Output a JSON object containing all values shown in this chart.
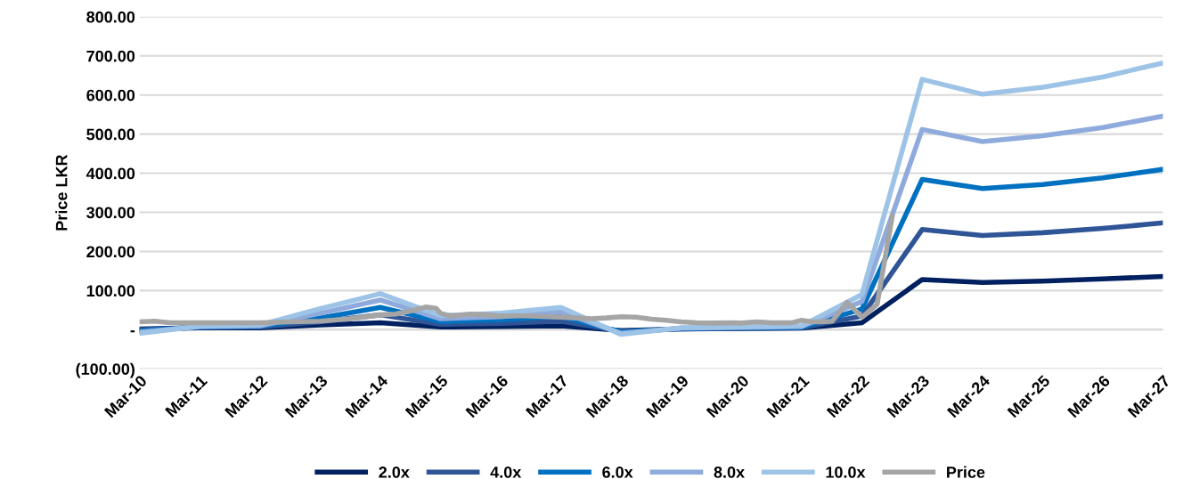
{
  "chart_data": {
    "type": "line",
    "ylabel": "Price LKR",
    "x": [
      "2010-03",
      "2011-03",
      "2012-03",
      "2013-03",
      "2014-03",
      "2015-03",
      "2016-03",
      "2017-03",
      "2018-03",
      "2019-03",
      "2020-03",
      "2021-03",
      "2022-03",
      "2023-03",
      "2024-03",
      "2025-03",
      "2026-03",
      "2027-03"
    ],
    "xlim": [
      "2010-03",
      "2027-03"
    ],
    "xticks": [
      {
        "value": "2010-03",
        "label": "Mar-10"
      },
      {
        "value": "2011-03",
        "label": "Mar-11"
      },
      {
        "value": "2012-03",
        "label": "Mar-12"
      },
      {
        "value": "2013-03",
        "label": "Mar-13"
      },
      {
        "value": "2014-03",
        "label": "Mar-14"
      },
      {
        "value": "2015-03",
        "label": "Mar-15"
      },
      {
        "value": "2016-03",
        "label": "Mar-16"
      },
      {
        "value": "2017-03",
        "label": "Mar-17"
      },
      {
        "value": "2018-03",
        "label": "Mar-18"
      },
      {
        "value": "2019-03",
        "label": "Mar-19"
      },
      {
        "value": "2020-03",
        "label": "Mar-20"
      },
      {
        "value": "2021-03",
        "label": "Mar-21"
      },
      {
        "value": "2022-03",
        "label": "Mar-22"
      },
      {
        "value": "2023-03",
        "label": "Mar-23"
      },
      {
        "value": "2024-03",
        "label": "Mar-24"
      },
      {
        "value": "2025-03",
        "label": "Mar-25"
      },
      {
        "value": "2026-03",
        "label": "Mar-26"
      },
      {
        "value": "2027-03",
        "label": "Mar-27"
      }
    ],
    "ylim": [
      -100,
      800
    ],
    "yticks": [
      {
        "value": -100,
        "label": "(100.00)"
      },
      {
        "value": 0,
        "label": "-"
      },
      {
        "value": 100,
        "label": "100.00"
      },
      {
        "value": 200,
        "label": "200.00"
      },
      {
        "value": 300,
        "label": "300.00"
      },
      {
        "value": 400,
        "label": "400.00"
      },
      {
        "value": 500,
        "label": "500.00"
      },
      {
        "value": 600,
        "label": "600.00"
      },
      {
        "value": 700,
        "label": "700.00"
      },
      {
        "value": 800,
        "label": "800.00"
      }
    ],
    "grid": "y",
    "legend": "bottom",
    "marker": "none",
    "line_style": "solid",
    "series": [
      {
        "name": "2.0x",
        "color": "#002060",
        "values": [
          2,
          5,
          5,
          12,
          18,
          7,
          8,
          10,
          -2,
          2,
          3,
          4,
          18,
          128,
          121,
          124,
          130,
          136
        ]
      },
      {
        "name": "4.0x",
        "color": "#2f5597",
        "values": [
          0,
          6,
          7,
          20,
          38,
          14,
          16,
          22,
          -4,
          2,
          4,
          5,
          35,
          256,
          241,
          248,
          259,
          273
        ]
      },
      {
        "name": "6.0x",
        "color": "#0070c0",
        "values": [
          -3,
          7,
          9,
          30,
          57,
          21,
          25,
          34,
          -6,
          3,
          5,
          6,
          53,
          384,
          361,
          371,
          388,
          410
        ]
      },
      {
        "name": "8.0x",
        "color": "#8faadc",
        "values": [
          -6,
          8,
          10,
          42,
          76,
          28,
          33,
          45,
          -9,
          4,
          6,
          8,
          72,
          512,
          481,
          496,
          517,
          546
        ]
      },
      {
        "name": "10.0x",
        "color": "#9dc3e6",
        "values": [
          -9,
          9,
          12,
          54,
          92,
          36,
          42,
          57,
          -12,
          5,
          7,
          10,
          90,
          640,
          602,
          620,
          646,
          682
        ]
      },
      {
        "name": "Price",
        "color": "#a5a5a5",
        "x": [
          "2010-03",
          "2010-06",
          "2010-09",
          "2011-03",
          "2011-09",
          "2012-03",
          "2012-09",
          "2013-03",
          "2013-09",
          "2014-03",
          "2014-06",
          "2014-09",
          "2014-12",
          "2015-02",
          "2015-03",
          "2015-05",
          "2015-09",
          "2015-12",
          "2016-03",
          "2016-06",
          "2016-09",
          "2017-03",
          "2017-06",
          "2017-09",
          "2017-12",
          "2018-03",
          "2018-06",
          "2018-09",
          "2018-12",
          "2019-03",
          "2019-06",
          "2019-09",
          "2020-01",
          "2020-03",
          "2020-06",
          "2020-09",
          "2021-01",
          "2021-03",
          "2021-05",
          "2021-07",
          "2021-09",
          "2021-12",
          "2022-03",
          "2022-06",
          "2022-09"
        ],
        "values": [
          20,
          22,
          18,
          18,
          18,
          18,
          20,
          22,
          28,
          38,
          40,
          48,
          58,
          55,
          42,
          35,
          40,
          38,
          35,
          36,
          35,
          32,
          30,
          28,
          30,
          33,
          32,
          27,
          24,
          20,
          18,
          17,
          18,
          17,
          20,
          18,
          18,
          24,
          20,
          20,
          22,
          70,
          32,
          65,
          290
        ]
      }
    ]
  }
}
